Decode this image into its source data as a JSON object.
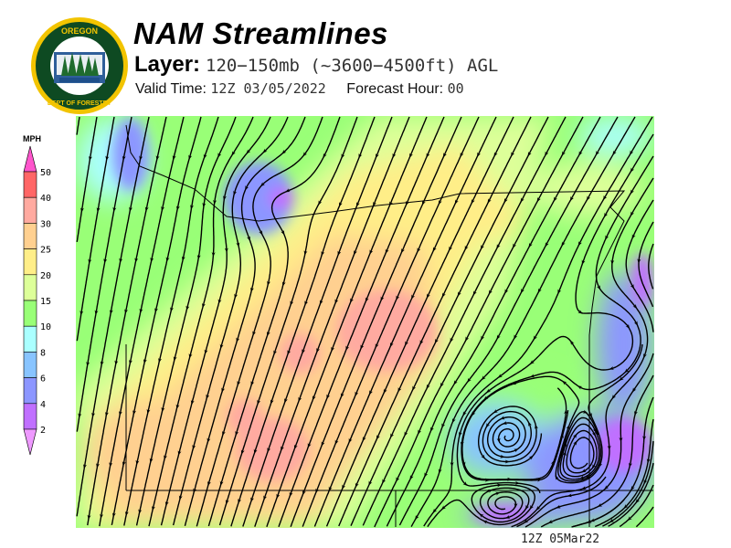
{
  "logo": {
    "text_top": "OREGON",
    "text_bottom": "DEPARTMENT OF FORESTRY"
  },
  "header": {
    "title": "NAM Streamlines",
    "layer_label": "Layer:",
    "layer_value": "120−150mb (~3600−4500ft) AGL",
    "valid_label": "Valid Time:",
    "valid_value": "12Z 03/05/2022",
    "forecast_label": "Forecast Hour:",
    "forecast_value": "00"
  },
  "legend": {
    "unit": "MPH",
    "labels": [
      "50",
      "40",
      "30",
      "25",
      "20",
      "15",
      "10",
      "8",
      "6",
      "4",
      "2"
    ],
    "colors": {
      "above_50": "#ff55cc",
      "40_50": "#ff6666",
      "30_40": "#ffaaa0",
      "25_30": "#ffd090",
      "20_25": "#ffee88",
      "15_20": "#ddff99",
      "10_15": "#99ff77",
      "8_10": "#aaffff",
      "6_8": "#88c4ff",
      "4_6": "#8c96ff",
      "2_4": "#c070ff",
      "below_2": "#ee99ff"
    }
  },
  "footer": {
    "timestamp": "12Z 05Mar22"
  }
}
